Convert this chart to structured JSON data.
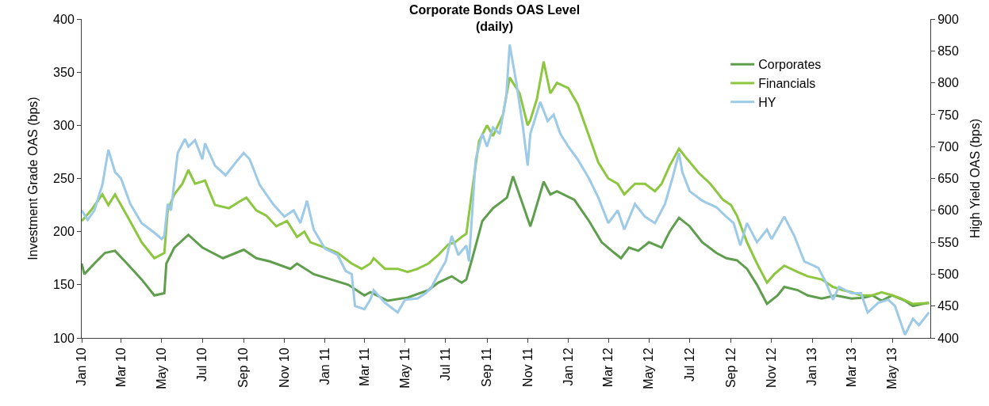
{
  "chart_data": {
    "type": "line",
    "title": "Corporate Bonds OAS Level\n(daily)",
    "ylabel": "Investment Grade OAS (bps)",
    "y2label": "High Yield OAS (bps)",
    "xlim": [
      "2010-01-01",
      "2013-06-27"
    ],
    "xticks": [
      {
        "value": "2010-01-01",
        "label": "Jan 10"
      },
      {
        "value": "2010-03-01",
        "label": "Mar 10"
      },
      {
        "value": "2010-05-01",
        "label": "May 10"
      },
      {
        "value": "2010-07-01",
        "label": "Jul 10"
      },
      {
        "value": "2010-09-01",
        "label": "Sep 10"
      },
      {
        "value": "2010-11-01",
        "label": "Nov 10"
      },
      {
        "value": "2011-01-01",
        "label": "Jan 11"
      },
      {
        "value": "2011-03-01",
        "label": "Mar 11"
      },
      {
        "value": "2011-05-01",
        "label": "May 11"
      },
      {
        "value": "2011-07-01",
        "label": "Jul 11"
      },
      {
        "value": "2011-09-01",
        "label": "Sep 11"
      },
      {
        "value": "2011-11-01",
        "label": "Nov 11"
      },
      {
        "value": "2012-01-01",
        "label": "Jan 12"
      },
      {
        "value": "2012-03-01",
        "label": "Mar 12"
      },
      {
        "value": "2012-05-01",
        "label": "May 12"
      },
      {
        "value": "2012-07-01",
        "label": "Jul 12"
      },
      {
        "value": "2012-09-01",
        "label": "Sep 12"
      },
      {
        "value": "2012-11-01",
        "label": "Nov 12"
      },
      {
        "value": "2013-01-01",
        "label": "Jan 13"
      },
      {
        "value": "2013-03-01",
        "label": "Mar 13"
      },
      {
        "value": "2013-05-01",
        "label": "May 13"
      }
    ],
    "ylim": [
      100,
      400
    ],
    "yticks": [
      100,
      150,
      200,
      250,
      300,
      350,
      400
    ],
    "y2lim": [
      400,
      900
    ],
    "y2ticks": [
      400,
      450,
      500,
      550,
      600,
      650,
      700,
      750,
      800,
      850,
      900
    ],
    "legend": "top right",
    "marker": "none",
    "line_style": "solid",
    "series": [
      {
        "name": "Corporates",
        "color": "#5f9e4d",
        "x": [
          "2010-01-01",
          "2010-01-05",
          "2010-01-20",
          "2010-02-05",
          "2010-02-20",
          "2010-03-10",
          "2010-04-01",
          "2010-04-20",
          "2010-05-05",
          "2010-05-08",
          "2010-05-20",
          "2010-06-10",
          "2010-07-01",
          "2010-08-01",
          "2010-09-01",
          "2010-09-20",
          "2010-10-10",
          "2010-11-10",
          "2010-11-20",
          "2010-12-15",
          "2011-01-10",
          "2011-02-05",
          "2011-03-01",
          "2011-03-10",
          "2011-04-05",
          "2011-05-05",
          "2011-06-05",
          "2011-06-20",
          "2011-07-10",
          "2011-07-25",
          "2011-08-01",
          "2011-08-10",
          "2011-08-25",
          "2011-09-10",
          "2011-10-01",
          "2011-10-10",
          "2011-10-25",
          "2011-11-05",
          "2011-11-10",
          "2011-11-25",
          "2011-12-05",
          "2011-12-15",
          "2012-01-10",
          "2012-02-01",
          "2012-02-20",
          "2012-03-10",
          "2012-03-20",
          "2012-04-01",
          "2012-04-15",
          "2012-05-01",
          "2012-05-20",
          "2012-06-01",
          "2012-06-15",
          "2012-07-01",
          "2012-07-20",
          "2012-08-10",
          "2012-08-25",
          "2012-09-10",
          "2012-09-25",
          "2012-10-10",
          "2012-10-25",
          "2012-11-10",
          "2012-11-20",
          "2012-12-10",
          "2012-12-25",
          "2013-01-15",
          "2013-02-05",
          "2013-03-01",
          "2013-03-20",
          "2013-04-01",
          "2013-04-15",
          "2013-05-01",
          "2013-05-20",
          "2013-06-01",
          "2013-06-15",
          "2013-06-25"
        ],
        "values": [
          170,
          160,
          170,
          180,
          182,
          170,
          155,
          140,
          142,
          170,
          185,
          197,
          185,
          175,
          183,
          175,
          172,
          165,
          170,
          160,
          155,
          150,
          140,
          143,
          135,
          138,
          145,
          152,
          158,
          152,
          155,
          175,
          210,
          222,
          232,
          252,
          225,
          205,
          215,
          247,
          235,
          238,
          230,
          210,
          190,
          180,
          175,
          185,
          182,
          190,
          185,
          200,
          213,
          205,
          190,
          180,
          175,
          173,
          165,
          150,
          132,
          140,
          148,
          145,
          140,
          137,
          140,
          137,
          138,
          140,
          135,
          140,
          135,
          130,
          132,
          133
        ]
      },
      {
        "name": "Financials",
        "color": "#8dc63f",
        "x": [
          "2010-01-01",
          "2010-01-15",
          "2010-02-01",
          "2010-02-10",
          "2010-02-20",
          "2010-03-10",
          "2010-04-01",
          "2010-04-20",
          "2010-05-05",
          "2010-05-10",
          "2010-05-20",
          "2010-06-01",
          "2010-06-10",
          "2010-06-20",
          "2010-07-05",
          "2010-07-20",
          "2010-08-10",
          "2010-08-25",
          "2010-09-05",
          "2010-09-20",
          "2010-10-05",
          "2010-10-20",
          "2010-11-05",
          "2010-11-20",
          "2010-12-01",
          "2010-12-10",
          "2011-01-01",
          "2011-01-20",
          "2011-02-10",
          "2011-02-25",
          "2011-03-10",
          "2011-03-15",
          "2011-04-01",
          "2011-04-20",
          "2011-05-05",
          "2011-05-20",
          "2011-06-05",
          "2011-06-20",
          "2011-07-05",
          "2011-07-15",
          "2011-07-25",
          "2011-08-01",
          "2011-08-10",
          "2011-08-20",
          "2011-09-01",
          "2011-09-10",
          "2011-09-25",
          "2011-10-05",
          "2011-10-20",
          "2011-11-01",
          "2011-11-05",
          "2011-11-15",
          "2011-11-25",
          "2011-12-05",
          "2011-12-15",
          "2012-01-01",
          "2012-01-15",
          "2012-02-01",
          "2012-02-15",
          "2012-03-01",
          "2012-03-15",
          "2012-03-25",
          "2012-04-10",
          "2012-04-25",
          "2012-05-10",
          "2012-05-20",
          "2012-06-01",
          "2012-06-15",
          "2012-06-25",
          "2012-07-15",
          "2012-08-01",
          "2012-08-20",
          "2012-09-01",
          "2012-09-10",
          "2012-09-25",
          "2012-10-10",
          "2012-10-25",
          "2012-11-05",
          "2012-11-20",
          "2012-12-10",
          "2012-12-25",
          "2013-01-15",
          "2013-02-01",
          "2013-02-15",
          "2013-03-01",
          "2013-03-15",
          "2013-04-01",
          "2013-04-15",
          "2013-05-01",
          "2013-05-15",
          "2013-06-01",
          "2013-06-25"
        ],
        "values": [
          210,
          220,
          235,
          225,
          235,
          215,
          190,
          175,
          180,
          220,
          235,
          245,
          258,
          245,
          248,
          225,
          222,
          228,
          232,
          220,
          215,
          205,
          210,
          195,
          200,
          190,
          185,
          180,
          170,
          165,
          170,
          175,
          165,
          165,
          162,
          165,
          170,
          178,
          188,
          190,
          195,
          198,
          240,
          285,
          300,
          290,
          310,
          345,
          330,
          300,
          305,
          325,
          360,
          330,
          340,
          335,
          320,
          290,
          265,
          250,
          245,
          235,
          245,
          245,
          238,
          245,
          262,
          278,
          270,
          255,
          245,
          230,
          225,
          215,
          190,
          170,
          152,
          160,
          168,
          162,
          158,
          155,
          148,
          145,
          143,
          140,
          140,
          143,
          140,
          137,
          132,
          133
        ]
      },
      {
        "name": "HY",
        "color": "#9dcae6",
        "axis": "y2",
        "x": [
          "2010-01-01",
          "2010-01-10",
          "2010-01-20",
          "2010-02-01",
          "2010-02-10",
          "2010-02-20",
          "2010-03-01",
          "2010-03-15",
          "2010-04-01",
          "2010-04-20",
          "2010-05-01",
          "2010-05-05",
          "2010-05-10",
          "2010-05-15",
          "2010-05-25",
          "2010-06-05",
          "2010-06-10",
          "2010-06-20",
          "2010-07-01",
          "2010-07-05",
          "2010-07-20",
          "2010-08-05",
          "2010-08-20",
          "2010-09-01",
          "2010-09-10",
          "2010-09-25",
          "2010-10-15",
          "2010-11-01",
          "2010-11-15",
          "2010-11-25",
          "2010-12-05",
          "2010-12-15",
          "2011-01-01",
          "2011-01-20",
          "2011-02-01",
          "2011-02-10",
          "2011-02-15",
          "2011-03-01",
          "2011-03-10",
          "2011-03-15",
          "2011-04-01",
          "2011-04-20",
          "2011-05-01",
          "2011-05-20",
          "2011-06-01",
          "2011-06-10",
          "2011-06-20",
          "2011-07-01",
          "2011-07-10",
          "2011-07-20",
          "2011-08-01",
          "2011-08-05",
          "2011-08-15",
          "2011-08-25",
          "2011-09-01",
          "2011-09-10",
          "2011-09-20",
          "2011-09-30",
          "2011-10-05",
          "2011-10-15",
          "2011-10-25",
          "2011-11-01",
          "2011-11-05",
          "2011-11-20",
          "2011-12-01",
          "2011-12-10",
          "2011-12-20",
          "2012-01-01",
          "2012-01-15",
          "2012-02-01",
          "2012-02-15",
          "2012-03-01",
          "2012-03-15",
          "2012-03-25",
          "2012-04-10",
          "2012-04-25",
          "2012-05-10",
          "2012-05-25",
          "2012-06-05",
          "2012-06-15",
          "2012-06-20",
          "2012-07-01",
          "2012-07-20",
          "2012-08-10",
          "2012-08-25",
          "2012-09-05",
          "2012-09-15",
          "2012-09-25",
          "2012-10-10",
          "2012-10-25",
          "2012-11-01",
          "2012-11-20",
          "2012-12-05",
          "2012-12-20",
          "2013-01-10",
          "2013-01-20",
          "2013-02-01",
          "2013-02-10",
          "2013-03-01",
          "2013-03-15",
          "2013-03-25",
          "2013-04-10",
          "2013-04-25",
          "2013-05-05",
          "2013-05-20",
          "2013-06-01",
          "2013-06-10",
          "2013-06-25"
        ],
        "values": [
          600,
          585,
          600,
          640,
          695,
          660,
          650,
          610,
          580,
          565,
          555,
          560,
          610,
          600,
          690,
          712,
          700,
          710,
          680,
          705,
          670,
          655,
          675,
          690,
          680,
          640,
          610,
          590,
          600,
          580,
          615,
          570,
          540,
          530,
          505,
          500,
          450,
          445,
          460,
          475,
          455,
          440,
          460,
          462,
          470,
          480,
          500,
          520,
          560,
          530,
          545,
          520,
          680,
          720,
          700,
          730,
          720,
          780,
          860,
          800,
          730,
          670,
          720,
          770,
          740,
          750,
          720,
          700,
          680,
          650,
          620,
          580,
          600,
          570,
          610,
          590,
          580,
          610,
          650,
          690,
          660,
          630,
          615,
          605,
          590,
          580,
          545,
          580,
          550,
          570,
          555,
          590,
          560,
          520,
          510,
          490,
          460,
          480,
          470,
          470,
          440,
          455,
          460,
          450,
          405,
          430,
          420,
          440
        ]
      }
    ]
  }
}
